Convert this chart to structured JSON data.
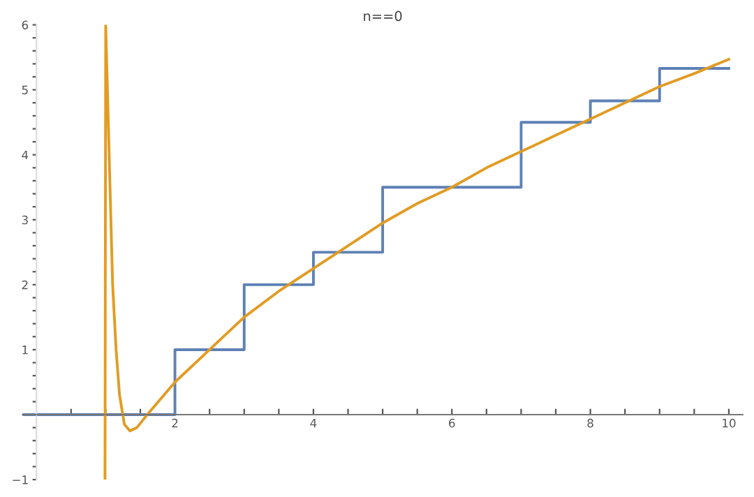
{
  "chart_data": {
    "type": "line",
    "title": "n==0",
    "xlim": [
      -0.2,
      10.2
    ],
    "ylim": [
      -1,
      6
    ],
    "xticks": [
      {
        "value": 0.5,
        "label": null
      },
      {
        "value": 1,
        "label": null
      },
      {
        "value": 1.5,
        "label": null
      },
      2,
      {
        "value": 2.5,
        "label": null
      },
      {
        "value": 3,
        "label": null
      },
      {
        "value": 3.5,
        "label": null
      },
      4,
      {
        "value": 4.5,
        "label": null
      },
      {
        "value": 5,
        "label": null
      },
      {
        "value": 5.5,
        "label": null
      },
      6,
      {
        "value": 6.5,
        "label": null
      },
      {
        "value": 7,
        "label": null
      },
      {
        "value": 7.5,
        "label": null
      },
      8,
      {
        "value": 8.5,
        "label": null
      },
      {
        "value": 9,
        "label": null
      },
      {
        "value": 9.5,
        "label": null
      },
      10
    ],
    "yticks": [
      -1,
      {
        "value": -0.8,
        "label": null
      },
      {
        "value": -0.6,
        "label": null
      },
      {
        "value": -0.4,
        "label": null
      },
      {
        "value": -0.2,
        "label": null
      },
      {
        "value": 0.2,
        "label": null
      },
      {
        "value": 0.4,
        "label": null
      },
      {
        "value": 0.6,
        "label": null
      },
      {
        "value": 0.8,
        "label": null
      },
      1,
      {
        "value": 1.2,
        "label": null
      },
      {
        "value": 1.4,
        "label": null
      },
      {
        "value": 1.6,
        "label": null
      },
      {
        "value": 1.8,
        "label": null
      },
      2,
      {
        "value": 2.2,
        "label": null
      },
      {
        "value": 2.4,
        "label": null
      },
      {
        "value": 2.6,
        "label": null
      },
      {
        "value": 2.8,
        "label": null
      },
      3,
      {
        "value": 3.2,
        "label": null
      },
      {
        "value": 3.4,
        "label": null
      },
      {
        "value": 3.6,
        "label": null
      },
      {
        "value": 3.8,
        "label": null
      },
      4,
      {
        "value": 4.2,
        "label": null
      },
      {
        "value": 4.4,
        "label": null
      },
      {
        "value": 4.6,
        "label": null
      },
      {
        "value": 4.8,
        "label": null
      },
      5,
      {
        "value": 5.2,
        "label": null
      },
      {
        "value": 5.4,
        "label": null
      },
      {
        "value": 5.6,
        "label": null
      },
      {
        "value": 5.8,
        "label": null
      },
      6
    ],
    "grid": false,
    "legend": false,
    "series": [
      {
        "type": "step",
        "color": "#5e81b5",
        "x": [
          -0.2,
          2,
          3,
          4,
          5,
          7,
          8,
          9,
          10
        ],
        "values": [
          0,
          1,
          2,
          2.5,
          3.5,
          4.5,
          4.83,
          5.33,
          5.33
        ]
      },
      {
        "color": "#e19c24",
        "x": [
          0.99,
          1.0,
          1.05,
          1.1,
          1.15,
          1.2,
          1.27,
          1.35,
          1.45,
          1.6,
          1.8,
          2,
          2.5,
          3,
          3.5,
          4,
          4.5,
          5,
          5.5,
          6,
          6.5,
          7,
          7.5,
          8,
          8.5,
          9,
          9.5,
          10
        ],
        "values": [
          -1,
          6,
          4,
          2,
          1,
          0.3,
          -0.15,
          -0.25,
          -0.2,
          0,
          0.25,
          0.5,
          1,
          1.5,
          1.9,
          2.25,
          2.6,
          2.95,
          3.25,
          3.5,
          3.8,
          4.05,
          4.3,
          4.55,
          4.8,
          5.05,
          5.25,
          5.47
        ]
      }
    ]
  }
}
